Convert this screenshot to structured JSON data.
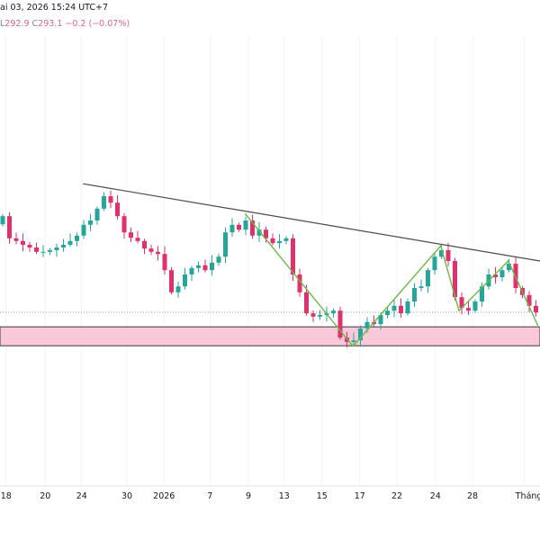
{
  "header": {
    "datetime": "ai 03, 2026 15:24 UTC+7",
    "low_label": "L",
    "low": "292.9",
    "close_label": "C",
    "close": "293.1",
    "change": "−0.2 (−0.07%)"
  },
  "colors": {
    "up": "#26a69a",
    "down": "#e0306e",
    "zone": "#f9c9d9",
    "trend": "#4a4a4a",
    "zigzag": "#66bb44",
    "grid": "#f0f3fa"
  },
  "chart_data": {
    "type": "candlestick",
    "last_price": 293.1,
    "closes": [
      310.9,
      306.8,
      306.3,
      305.6,
      305.1,
      304.3,
      304.3,
      304.6,
      305.1,
      305.6,
      306.3,
      307.3,
      309.3,
      310.1,
      312.3,
      314.6,
      313.4,
      310.9,
      307.9,
      306.9,
      306.3,
      304.9,
      304.3,
      303.9,
      300.9,
      296.8,
      297.9,
      300.1,
      301.3,
      301.8,
      300.9,
      302.3,
      303.4,
      307.9,
      309.3,
      308.4,
      310.1,
      307.3,
      308.4,
      306.8,
      305.9,
      306.3,
      306.8,
      300.1,
      296.8,
      292.9,
      292.3,
      292.6,
      292.9,
      293.4,
      288.4,
      287.6,
      287.9,
      290.1,
      291.3,
      290.9,
      292.6,
      293.4,
      294.3,
      292.9,
      295.1,
      297.6,
      297.9,
      300.9,
      303.4,
      304.6,
      302.6,
      295.9,
      293.9,
      293.4,
      295.1,
      297.9,
      300.1,
      299.6,
      300.9,
      302.1,
      297.6,
      296.3,
      294.3,
      293.1
    ],
    "x_tick_labels": [
      {
        "label": "18",
        "index": 0.5
      },
      {
        "label": "20",
        "index": 6.3
      },
      {
        "label": "24",
        "index": 11.7
      },
      {
        "label": "30",
        "index": 18.4
      },
      {
        "label": "2026",
        "index": 23.9
      },
      {
        "label": "7",
        "index": 30.7
      },
      {
        "label": "9",
        "index": 36.4
      },
      {
        "label": "13",
        "index": 41.7
      },
      {
        "label": "15",
        "index": 47.3
      },
      {
        "label": "17",
        "index": 52.9
      },
      {
        "label": "22",
        "index": 58.4
      },
      {
        "label": "24",
        "index": 64.1
      },
      {
        "label": "28",
        "index": 69.6
      },
      {
        "label": "Tháng",
        "index": 77.3
      }
    ],
    "support_zone": [
      286.9,
      290.4
    ],
    "trendline": [
      {
        "index": 11.9,
        "price": 316.9
      },
      {
        "index": 79.6,
        "price": 302.1
      }
    ],
    "zigzag": [
      {
        "index": 35.9,
        "price": 311.4
      },
      {
        "index": 51.9,
        "price": 286.8
      },
      {
        "index": 64.9,
        "price": 305.4
      },
      {
        "index": 67.6,
        "price": 293.4
      },
      {
        "index": 74.9,
        "price": 302.6
      },
      {
        "index": 79.3,
        "price": 290.6
      }
    ]
  }
}
